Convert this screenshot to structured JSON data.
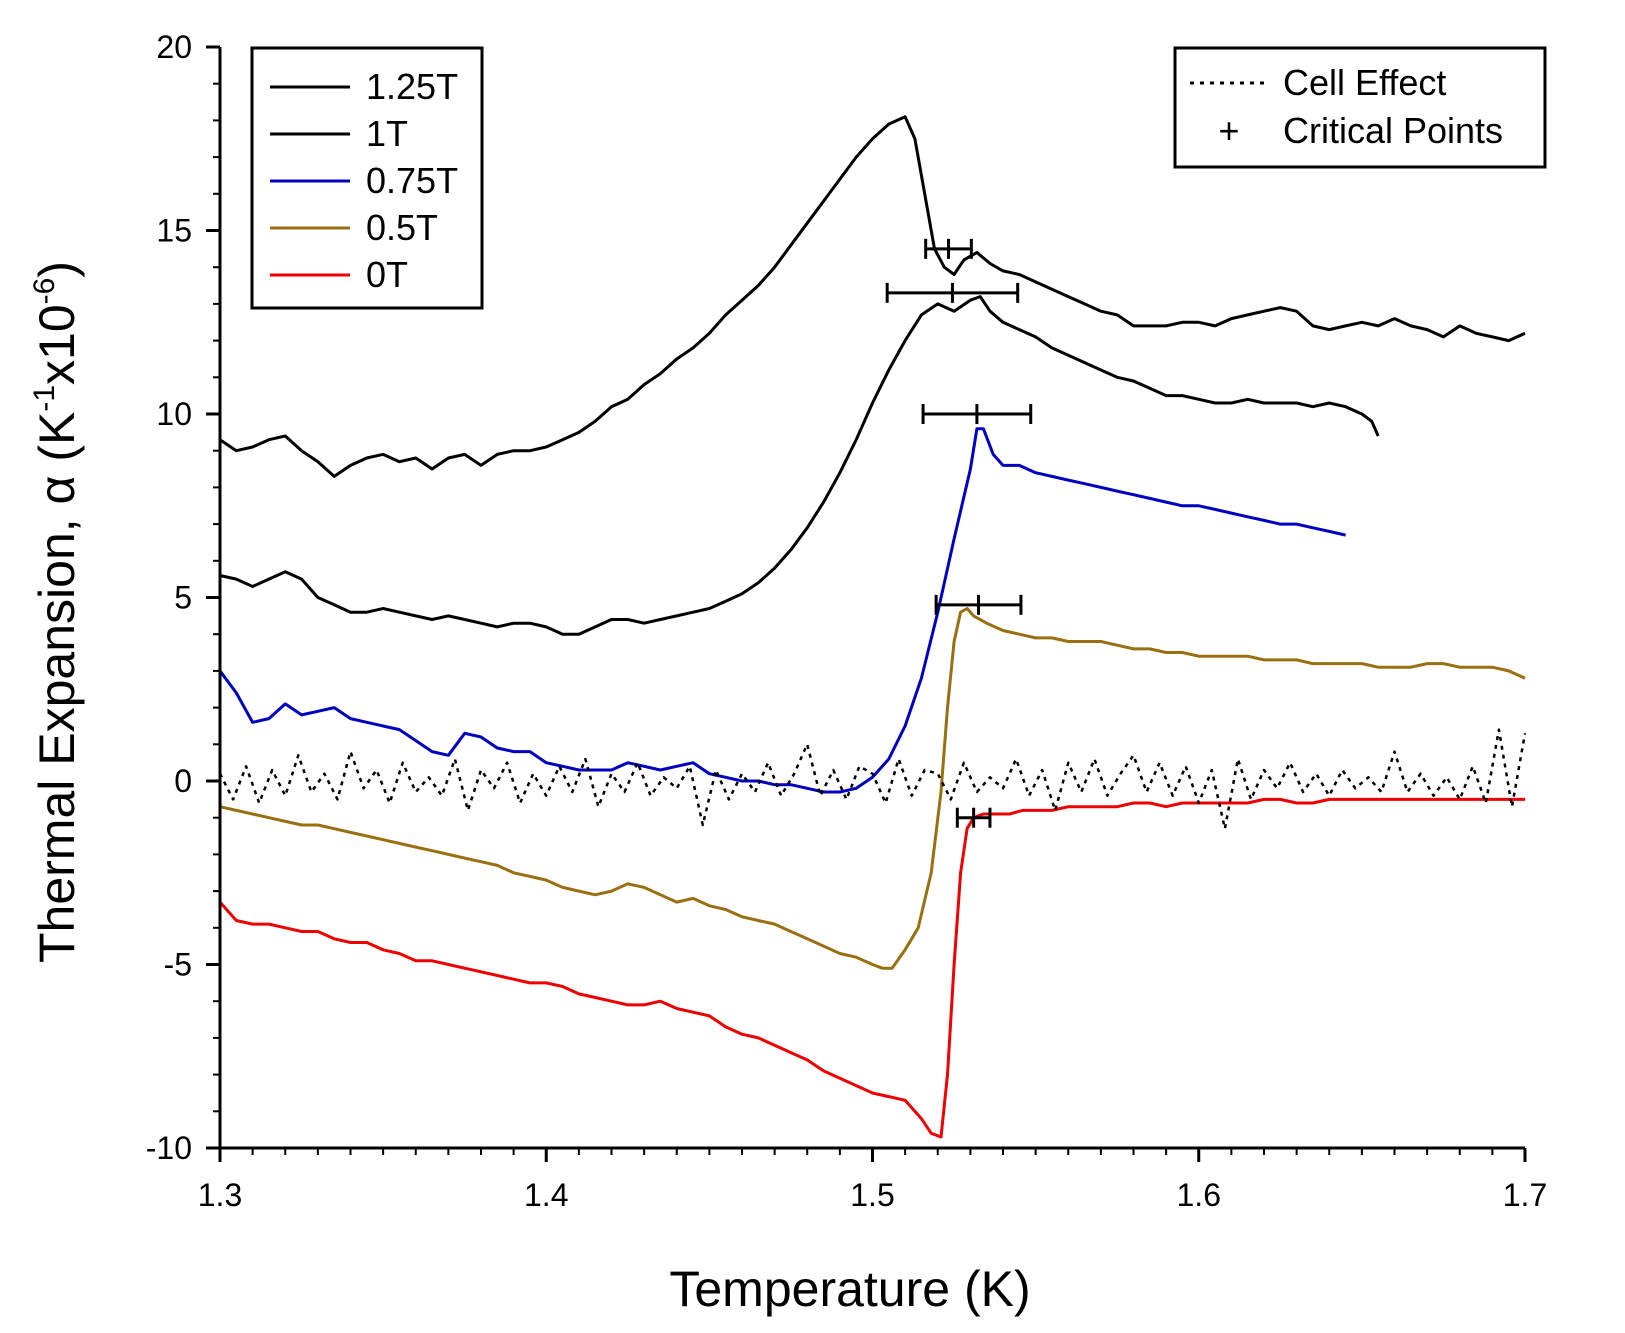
{
  "chart_data": {
    "type": "line",
    "xlabel": "Temperature (K)",
    "ylabel": {
      "prefix": "Thermal Expansion, α (K",
      "exp1": "-1",
      "mid": "x10",
      "exp2": "-6",
      "suffix": ")"
    },
    "xlim": [
      1.3,
      1.7
    ],
    "ylim": [
      -10,
      20
    ],
    "xticks": [
      1.3,
      1.4,
      1.5,
      1.6,
      1.7
    ],
    "xtick_labels": [
      "1.3",
      "1.4",
      "1.5",
      "1.6",
      "1.7"
    ],
    "yticks": [
      -10,
      -5,
      0,
      5,
      10,
      15,
      20
    ],
    "ytick_labels": [
      "-10",
      "-5",
      "0",
      "5",
      "10",
      "15",
      "20"
    ],
    "legend_left": {
      "position": "top-left",
      "entries": [
        {
          "label": "1.25T",
          "color": "#000000"
        },
        {
          "label": "1T",
          "color": "#000000"
        },
        {
          "label": "0.75T",
          "color": "#0000c0"
        },
        {
          "label": "0.5T",
          "color": "#9a6f10"
        },
        {
          "label": "0T",
          "color": "#ee0000"
        }
      ]
    },
    "legend_right": {
      "position": "top-right",
      "entries": [
        {
          "label": "Cell Effect",
          "symbol": "dotted-line"
        },
        {
          "label": "Critical Points",
          "symbol": "+"
        }
      ]
    },
    "series": [
      {
        "name": "1.25T",
        "color": "#000000",
        "style": "solid",
        "x": [
          1.3,
          1.305,
          1.31,
          1.315,
          1.32,
          1.325,
          1.33,
          1.335,
          1.34,
          1.345,
          1.35,
          1.355,
          1.36,
          1.365,
          1.37,
          1.375,
          1.38,
          1.385,
          1.39,
          1.395,
          1.4,
          1.405,
          1.41,
          1.415,
          1.42,
          1.425,
          1.43,
          1.435,
          1.44,
          1.445,
          1.45,
          1.455,
          1.46,
          1.465,
          1.47,
          1.475,
          1.48,
          1.485,
          1.49,
          1.495,
          1.5,
          1.505,
          1.51,
          1.513,
          1.516,
          1.519,
          1.522,
          1.525,
          1.528,
          1.532,
          1.536,
          1.54,
          1.545,
          1.55,
          1.555,
          1.56,
          1.565,
          1.57,
          1.575,
          1.58,
          1.585,
          1.59,
          1.595,
          1.6,
          1.605,
          1.61,
          1.615,
          1.62,
          1.625,
          1.63,
          1.635,
          1.64,
          1.645,
          1.65,
          1.655,
          1.66,
          1.665,
          1.67,
          1.675,
          1.68,
          1.685,
          1.69,
          1.695,
          1.7
        ],
        "y": [
          9.3,
          9.0,
          9.1,
          9.3,
          9.4,
          9.0,
          8.7,
          8.3,
          8.6,
          8.8,
          8.9,
          8.7,
          8.8,
          8.5,
          8.8,
          8.9,
          8.6,
          8.9,
          9.0,
          9.0,
          9.1,
          9.3,
          9.5,
          9.8,
          10.2,
          10.4,
          10.8,
          11.1,
          11.5,
          11.8,
          12.2,
          12.7,
          13.1,
          13.5,
          14.0,
          14.6,
          15.2,
          15.8,
          16.4,
          17.0,
          17.5,
          17.9,
          18.1,
          17.5,
          16.0,
          14.5,
          14.0,
          13.8,
          14.2,
          14.4,
          14.1,
          13.9,
          13.8,
          13.6,
          13.4,
          13.2,
          13.0,
          12.8,
          12.7,
          12.4,
          12.4,
          12.4,
          12.5,
          12.5,
          12.4,
          12.6,
          12.7,
          12.8,
          12.9,
          12.8,
          12.4,
          12.3,
          12.4,
          12.5,
          12.4,
          12.6,
          12.4,
          12.3,
          12.1,
          12.4,
          12.2,
          12.1,
          12.0,
          12.2
        ]
      },
      {
        "name": "1T",
        "color": "#000000",
        "style": "solid",
        "x": [
          1.3,
          1.305,
          1.31,
          1.315,
          1.32,
          1.325,
          1.33,
          1.335,
          1.34,
          1.345,
          1.35,
          1.355,
          1.36,
          1.365,
          1.37,
          1.375,
          1.38,
          1.385,
          1.39,
          1.395,
          1.4,
          1.405,
          1.41,
          1.415,
          1.42,
          1.425,
          1.43,
          1.435,
          1.44,
          1.445,
          1.45,
          1.455,
          1.46,
          1.465,
          1.47,
          1.475,
          1.48,
          1.485,
          1.49,
          1.495,
          1.5,
          1.505,
          1.51,
          1.515,
          1.52,
          1.525,
          1.53,
          1.533,
          1.536,
          1.54,
          1.545,
          1.55,
          1.555,
          1.56,
          1.565,
          1.57,
          1.575,
          1.58,
          1.585,
          1.59,
          1.595,
          1.6,
          1.605,
          1.61,
          1.615,
          1.62,
          1.625,
          1.63,
          1.635,
          1.64,
          1.645,
          1.65,
          1.653,
          1.655
        ],
        "y": [
          5.6,
          5.5,
          5.3,
          5.5,
          5.7,
          5.5,
          5.0,
          4.8,
          4.6,
          4.6,
          4.7,
          4.6,
          4.5,
          4.4,
          4.5,
          4.4,
          4.3,
          4.2,
          4.3,
          4.3,
          4.2,
          4.0,
          4.0,
          4.2,
          4.4,
          4.4,
          4.3,
          4.4,
          4.5,
          4.6,
          4.7,
          4.9,
          5.1,
          5.4,
          5.8,
          6.3,
          6.9,
          7.6,
          8.4,
          9.3,
          10.3,
          11.2,
          12.0,
          12.7,
          13.0,
          12.8,
          13.1,
          13.2,
          12.8,
          12.5,
          12.3,
          12.1,
          11.8,
          11.6,
          11.4,
          11.2,
          11.0,
          10.9,
          10.7,
          10.5,
          10.5,
          10.4,
          10.3,
          10.3,
          10.4,
          10.3,
          10.3,
          10.3,
          10.2,
          10.3,
          10.2,
          10.0,
          9.8,
          9.4
        ]
      },
      {
        "name": "0.75T",
        "color": "#0000c0",
        "style": "solid",
        "x": [
          1.3,
          1.305,
          1.31,
          1.315,
          1.32,
          1.325,
          1.33,
          1.335,
          1.34,
          1.345,
          1.35,
          1.355,
          1.36,
          1.365,
          1.37,
          1.375,
          1.38,
          1.385,
          1.39,
          1.395,
          1.4,
          1.405,
          1.41,
          1.415,
          1.42,
          1.425,
          1.43,
          1.435,
          1.44,
          1.445,
          1.45,
          1.455,
          1.46,
          1.465,
          1.47,
          1.475,
          1.48,
          1.485,
          1.49,
          1.495,
          1.5,
          1.505,
          1.51,
          1.515,
          1.52,
          1.525,
          1.53,
          1.532,
          1.534,
          1.537,
          1.54,
          1.545,
          1.55,
          1.555,
          1.56,
          1.565,
          1.57,
          1.575,
          1.58,
          1.585,
          1.59,
          1.595,
          1.6,
          1.605,
          1.61,
          1.615,
          1.62,
          1.625,
          1.63,
          1.635,
          1.64,
          1.645
        ],
        "y": [
          3.0,
          2.4,
          1.6,
          1.7,
          2.1,
          1.8,
          1.9,
          2.0,
          1.7,
          1.6,
          1.5,
          1.4,
          1.1,
          0.8,
          0.7,
          1.3,
          1.2,
          0.9,
          0.8,
          0.8,
          0.5,
          0.4,
          0.3,
          0.3,
          0.3,
          0.5,
          0.4,
          0.3,
          0.4,
          0.5,
          0.2,
          0.1,
          0.0,
          0.0,
          -0.1,
          -0.1,
          -0.2,
          -0.3,
          -0.3,
          -0.2,
          0.1,
          0.6,
          1.5,
          2.8,
          4.6,
          6.6,
          8.5,
          9.6,
          9.6,
          8.9,
          8.6,
          8.6,
          8.4,
          8.3,
          8.2,
          8.1,
          8.0,
          7.9,
          7.8,
          7.7,
          7.6,
          7.5,
          7.5,
          7.4,
          7.3,
          7.2,
          7.1,
          7.0,
          7.0,
          6.9,
          6.8,
          6.7
        ]
      },
      {
        "name": "0.5T",
        "color": "#9a6f10",
        "style": "solid",
        "x": [
          1.3,
          1.305,
          1.31,
          1.315,
          1.32,
          1.325,
          1.33,
          1.335,
          1.34,
          1.345,
          1.35,
          1.355,
          1.36,
          1.365,
          1.37,
          1.375,
          1.38,
          1.385,
          1.39,
          1.395,
          1.4,
          1.405,
          1.41,
          1.415,
          1.42,
          1.425,
          1.43,
          1.435,
          1.44,
          1.445,
          1.45,
          1.455,
          1.46,
          1.465,
          1.47,
          1.475,
          1.48,
          1.485,
          1.49,
          1.495,
          1.5,
          1.503,
          1.506,
          1.51,
          1.514,
          1.518,
          1.521,
          1.523,
          1.525,
          1.527,
          1.529,
          1.531,
          1.535,
          1.54,
          1.545,
          1.55,
          1.555,
          1.56,
          1.565,
          1.57,
          1.575,
          1.58,
          1.585,
          1.59,
          1.595,
          1.6,
          1.605,
          1.61,
          1.615,
          1.62,
          1.625,
          1.63,
          1.635,
          1.64,
          1.645,
          1.65,
          1.655,
          1.66,
          1.665,
          1.67,
          1.675,
          1.68,
          1.685,
          1.69,
          1.695,
          1.7
        ],
        "y": [
          -0.7,
          -0.8,
          -0.9,
          -1.0,
          -1.1,
          -1.2,
          -1.2,
          -1.3,
          -1.4,
          -1.5,
          -1.6,
          -1.7,
          -1.8,
          -1.9,
          -2.0,
          -2.1,
          -2.2,
          -2.3,
          -2.5,
          -2.6,
          -2.7,
          -2.9,
          -3.0,
          -3.1,
          -3.0,
          -2.8,
          -2.9,
          -3.1,
          -3.3,
          -3.2,
          -3.4,
          -3.5,
          -3.7,
          -3.8,
          -3.9,
          -4.1,
          -4.3,
          -4.5,
          -4.7,
          -4.8,
          -5.0,
          -5.1,
          -5.1,
          -4.6,
          -4.0,
          -2.5,
          -0.3,
          2.0,
          3.8,
          4.6,
          4.7,
          4.5,
          4.3,
          4.1,
          4.0,
          3.9,
          3.9,
          3.8,
          3.8,
          3.8,
          3.7,
          3.6,
          3.6,
          3.5,
          3.5,
          3.4,
          3.4,
          3.4,
          3.4,
          3.3,
          3.3,
          3.3,
          3.2,
          3.2,
          3.2,
          3.2,
          3.1,
          3.1,
          3.1,
          3.2,
          3.2,
          3.1,
          3.1,
          3.1,
          3.0,
          2.8
        ]
      },
      {
        "name": "0T",
        "color": "#ee0000",
        "style": "solid",
        "x": [
          1.3,
          1.305,
          1.31,
          1.315,
          1.32,
          1.325,
          1.33,
          1.335,
          1.34,
          1.345,
          1.35,
          1.355,
          1.36,
          1.365,
          1.37,
          1.375,
          1.38,
          1.385,
          1.39,
          1.395,
          1.4,
          1.405,
          1.41,
          1.415,
          1.42,
          1.425,
          1.43,
          1.435,
          1.44,
          1.445,
          1.45,
          1.455,
          1.46,
          1.465,
          1.47,
          1.475,
          1.48,
          1.485,
          1.49,
          1.495,
          1.5,
          1.505,
          1.51,
          1.515,
          1.518,
          1.521,
          1.523,
          1.525,
          1.527,
          1.529,
          1.531,
          1.534,
          1.538,
          1.542,
          1.546,
          1.55,
          1.555,
          1.56,
          1.565,
          1.57,
          1.575,
          1.58,
          1.585,
          1.59,
          1.595,
          1.6,
          1.605,
          1.61,
          1.615,
          1.62,
          1.625,
          1.63,
          1.635,
          1.64,
          1.645,
          1.65,
          1.655,
          1.66,
          1.665,
          1.67,
          1.675,
          1.68,
          1.685,
          1.69,
          1.695,
          1.7
        ],
        "y": [
          -3.3,
          -3.8,
          -3.9,
          -3.9,
          -4.0,
          -4.1,
          -4.1,
          -4.3,
          -4.4,
          -4.4,
          -4.6,
          -4.7,
          -4.9,
          -4.9,
          -5.0,
          -5.1,
          -5.2,
          -5.3,
          -5.4,
          -5.5,
          -5.5,
          -5.6,
          -5.8,
          -5.9,
          -6.0,
          -6.1,
          -6.1,
          -6.0,
          -6.2,
          -6.3,
          -6.4,
          -6.7,
          -6.9,
          -7.0,
          -7.2,
          -7.4,
          -7.6,
          -7.9,
          -8.1,
          -8.3,
          -8.5,
          -8.6,
          -8.7,
          -9.2,
          -9.6,
          -9.7,
          -8.0,
          -5.0,
          -2.5,
          -1.3,
          -1.0,
          -0.9,
          -0.9,
          -0.9,
          -0.8,
          -0.8,
          -0.8,
          -0.7,
          -0.7,
          -0.7,
          -0.7,
          -0.6,
          -0.6,
          -0.7,
          -0.6,
          -0.6,
          -0.6,
          -0.6,
          -0.6,
          -0.5,
          -0.5,
          -0.6,
          -0.6,
          -0.5,
          -0.5,
          -0.5,
          -0.5,
          -0.5,
          -0.5,
          -0.5,
          -0.5,
          -0.5,
          -0.5,
          -0.5,
          -0.5,
          -0.5
        ]
      },
      {
        "name": "Cell Effect",
        "color": "#000000",
        "style": "dotted",
        "x": [
          1.3,
          1.304,
          1.308,
          1.312,
          1.316,
          1.32,
          1.324,
          1.328,
          1.332,
          1.336,
          1.34,
          1.344,
          1.348,
          1.352,
          1.356,
          1.36,
          1.364,
          1.368,
          1.372,
          1.376,
          1.38,
          1.384,
          1.388,
          1.392,
          1.396,
          1.4,
          1.404,
          1.408,
          1.412,
          1.416,
          1.42,
          1.424,
          1.428,
          1.432,
          1.436,
          1.44,
          1.444,
          1.448,
          1.452,
          1.456,
          1.46,
          1.464,
          1.468,
          1.472,
          1.476,
          1.48,
          1.484,
          1.488,
          1.492,
          1.496,
          1.5,
          1.504,
          1.508,
          1.512,
          1.516,
          1.52,
          1.524,
          1.528,
          1.532,
          1.536,
          1.54,
          1.544,
          1.548,
          1.552,
          1.556,
          1.56,
          1.564,
          1.568,
          1.572,
          1.576,
          1.58,
          1.584,
          1.588,
          1.592,
          1.596,
          1.6,
          1.604,
          1.608,
          1.612,
          1.616,
          1.62,
          1.624,
          1.628,
          1.632,
          1.636,
          1.64,
          1.644,
          1.648,
          1.652,
          1.656,
          1.66,
          1.664,
          1.668,
          1.672,
          1.676,
          1.68,
          1.684,
          1.688,
          1.692,
          1.696,
          1.7
        ],
        "y": [
          0.2,
          -0.5,
          0.4,
          -0.6,
          0.3,
          -0.4,
          0.7,
          -0.3,
          0.2,
          -0.5,
          0.8,
          -0.2,
          0.3,
          -0.6,
          0.5,
          -0.3,
          0.1,
          -0.4,
          0.6,
          -0.8,
          0.3,
          -0.2,
          0.5,
          -0.6,
          0.2,
          -0.4,
          0.4,
          -0.3,
          0.6,
          -0.7,
          0.2,
          -0.3,
          0.5,
          -0.4,
          0.1,
          -0.2,
          0.4,
          -1.2,
          0.3,
          -0.5,
          0.2,
          -0.3,
          0.5,
          -0.4,
          0.2,
          1.0,
          -0.4,
          0.3,
          -0.5,
          0.4,
          0.2,
          -0.6,
          0.6,
          -0.4,
          0.3,
          0.2,
          -0.5,
          0.5,
          -0.3,
          0.1,
          -0.2,
          0.6,
          -0.4,
          0.3,
          -0.8,
          0.5,
          -0.3,
          0.6,
          -0.4,
          0.2,
          0.7,
          -0.3,
          0.5,
          -0.4,
          0.4,
          -0.6,
          0.3,
          -1.3,
          0.6,
          -0.5,
          0.3,
          -0.2,
          0.5,
          -0.3,
          0.2,
          -0.4,
          0.3,
          -0.2,
          0.1,
          -0.3,
          0.8,
          -0.3,
          0.2,
          -0.4,
          0.1,
          -0.5,
          0.4,
          -0.6,
          1.4,
          -0.7,
          1.3
        ]
      }
    ],
    "critical_points": [
      {
        "x": 1.5233,
        "y": 14.5,
        "xerr": 0.007
      },
      {
        "x": 1.5245,
        "y": 13.3,
        "xerr": 0.02
      },
      {
        "x": 1.532,
        "y": 10.0,
        "xerr": 0.0165
      },
      {
        "x": 1.5325,
        "y": 4.8,
        "xerr": 0.013
      },
      {
        "x": 1.531,
        "y": -1.0,
        "xerr": 0.005
      }
    ]
  }
}
